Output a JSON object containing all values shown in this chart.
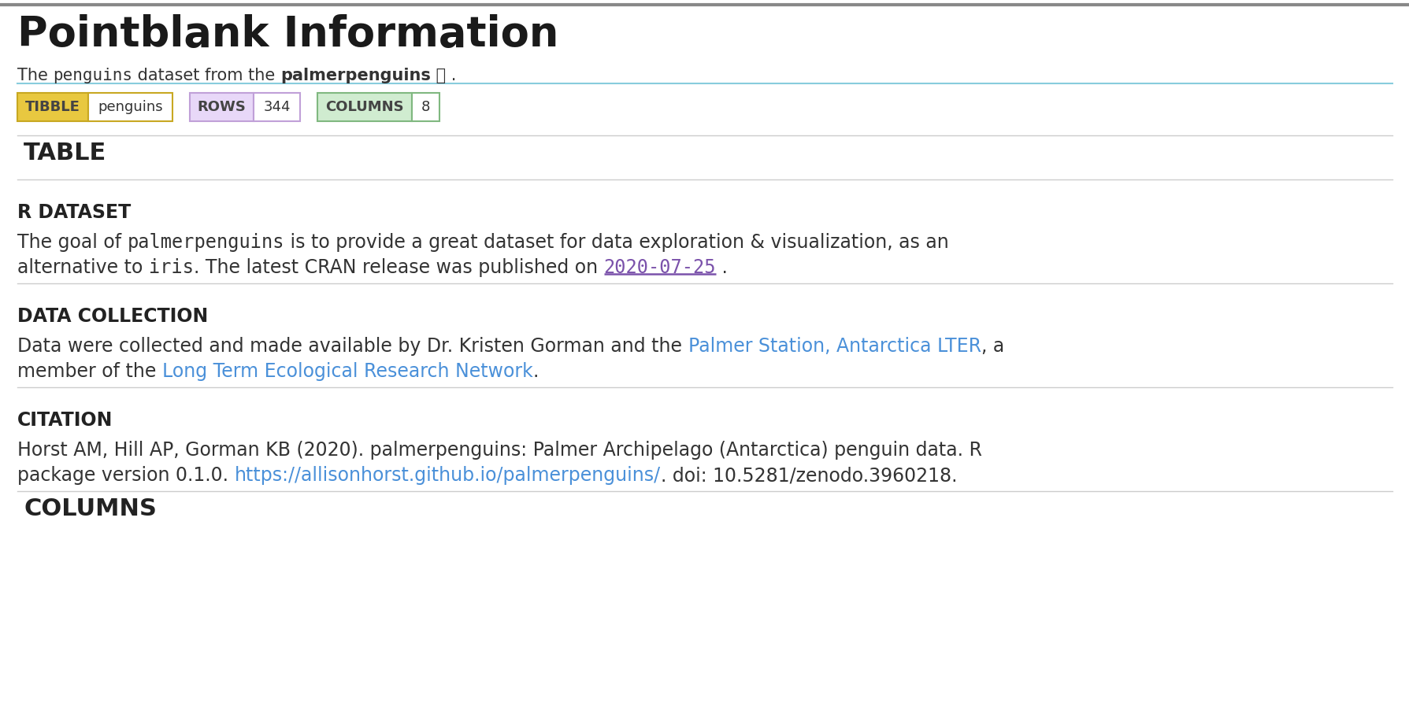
{
  "title": "Pointblank Information",
  "tibble_label": "TIBBLE",
  "tibble_value": "penguins",
  "rows_label": "ROWS",
  "rows_value": "344",
  "columns_label": "COLUMNS",
  "columns_value": "8",
  "tibble_label_bg": "#e8c840",
  "tibble_label_border": "#c8a822",
  "rows_label_bg": "#e8d8f8",
  "rows_label_border": "#c0a0d8",
  "columns_label_bg": "#d0ecd0",
  "columns_label_border": "#80b880",
  "section_table": "TABLE",
  "section1_title": "R DATASET",
  "section2_title": "DATA COLLECTION",
  "section3_title": "CITATION",
  "columns_section": "COLUMNS",
  "bg_color": "#ffffff",
  "text_color": "#333333",
  "link_color": "#4a90d9",
  "mono_underline_color": "#7b52ab",
  "top_border_color": "#888888",
  "section_border_color": "#cccccc",
  "subtitle_underline_color": "#88ccdd",
  "fig_width": 17.9,
  "fig_height": 9.16,
  "dpi": 100,
  "title_fontsize": 38,
  "subtitle_fontsize": 15,
  "badge_fontsize": 13,
  "section_header_fontsize": 22,
  "subsection_title_fontsize": 17,
  "body_fontsize": 17
}
